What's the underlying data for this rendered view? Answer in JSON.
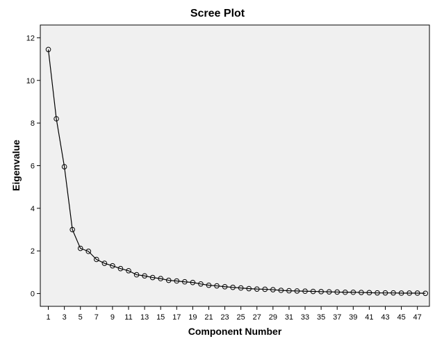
{
  "chart_data": {
    "type": "line",
    "title": "Scree Plot",
    "xlabel": "Component Number",
    "ylabel": "Eigenvalue",
    "xlim": [
      0,
      48.5
    ],
    "ylim": [
      -0.6,
      12.6
    ],
    "x_tick_labels": [
      "1",
      "3",
      "5",
      "7",
      "9",
      "11",
      "13",
      "15",
      "17",
      "19",
      "21",
      "23",
      "25",
      "27",
      "29",
      "31",
      "33",
      "35",
      "37",
      "39",
      "41",
      "43",
      "45",
      "47"
    ],
    "y_tick_labels": [
      "0",
      "2",
      "4",
      "6",
      "8",
      "10",
      "12"
    ],
    "grid": false,
    "marker": "open-circle",
    "colors": {
      "plot_background": "#f0f0f0",
      "line": "#000000"
    },
    "series": [
      {
        "x": [
          1,
          2,
          3,
          4,
          5,
          6,
          7,
          8,
          9,
          10,
          11,
          12,
          13,
          14,
          15,
          16,
          17,
          18,
          19,
          20,
          21,
          22,
          23,
          24,
          25,
          26,
          27,
          28,
          29,
          30,
          31,
          32,
          33,
          34,
          35,
          36,
          37,
          38,
          39,
          40,
          41,
          42,
          43,
          44,
          45,
          46,
          47,
          48
        ],
        "values": [
          11.45,
          8.2,
          5.95,
          3.0,
          2.12,
          1.98,
          1.6,
          1.42,
          1.3,
          1.17,
          1.07,
          0.88,
          0.83,
          0.75,
          0.7,
          0.62,
          0.59,
          0.55,
          0.52,
          0.45,
          0.39,
          0.36,
          0.32,
          0.29,
          0.26,
          0.23,
          0.21,
          0.2,
          0.18,
          0.15,
          0.13,
          0.12,
          0.11,
          0.1,
          0.09,
          0.08,
          0.07,
          0.06,
          0.06,
          0.05,
          0.04,
          0.03,
          0.03,
          0.03,
          0.02,
          0.02,
          0.02,
          0.01
        ]
      }
    ]
  }
}
